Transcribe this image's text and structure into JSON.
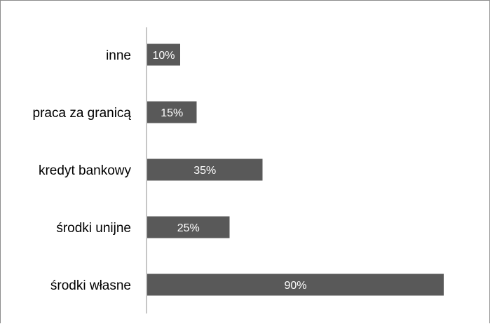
{
  "chart_data": {
    "type": "bar",
    "orientation": "horizontal",
    "categories": [
      "inne",
      "praca za granicą",
      "kredyt bankowy",
      "środki unijne",
      "środki własne"
    ],
    "values": [
      10,
      15,
      35,
      25,
      90
    ],
    "data_labels": [
      "10%",
      "15%",
      "35%",
      "25%",
      "90%"
    ],
    "title": "",
    "xlabel": "",
    "ylabel": "",
    "xlim": [
      0,
      100
    ],
    "grid": false,
    "legend": "none",
    "bar_color": "#595959"
  }
}
